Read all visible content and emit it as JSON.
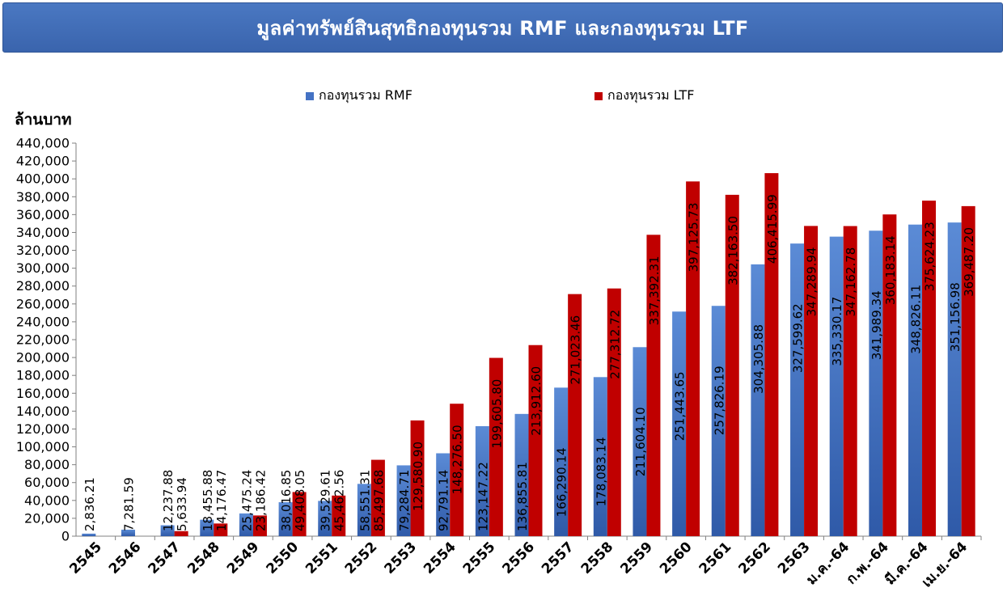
{
  "title": "มูลค่าทรัพย์สินสุทธิกองทุนรวม RMF  และกองทุนรวม LTF",
  "colors": {
    "banner": "#4472c4",
    "rmf": "#4472c4",
    "ltf": "#c00000"
  },
  "chart_data": {
    "type": "bar",
    "title": "มูลค่าทรัพย์สินสุทธิกองทุนรวม RMF  และกองทุนรวม LTF",
    "ylabel": "ล้านบาท",
    "xlabel": "",
    "ylim": [
      0,
      440000
    ],
    "ytick_step": 20000,
    "yticks": [
      "0",
      "20,000",
      "40,000",
      "60,000",
      "80,000",
      "100,000",
      "120,000",
      "140,000",
      "160,000",
      "180,000",
      "200,000",
      "220,000",
      "240,000",
      "260,000",
      "280,000",
      "300,000",
      "320,000",
      "340,000",
      "360,000",
      "380,000",
      "400,000",
      "420,000",
      "440,000"
    ],
    "legend_position": "top-center",
    "grid": false,
    "categories": [
      "2545",
      "2546",
      "2547",
      "2548",
      "2549",
      "2550",
      "2551",
      "2552",
      "2553",
      "2554",
      "2555",
      "2556",
      "2557",
      "2558",
      "2559",
      "2560",
      "2561",
      "2562",
      "2563",
      "ม.ค.-64",
      "ก.พ.-64",
      "มี.ค.-64",
      "เม.ย.-64"
    ],
    "series": [
      {
        "name": "กองทุนรวม RMF",
        "values": [
          2836.21,
          7281.59,
          12237.88,
          18455.88,
          25475.24,
          38016.85,
          39529.61,
          58551.31,
          79284.71,
          92791.14,
          123147.22,
          136855.81,
          166290.14,
          178083.14,
          211604.1,
          251443.65,
          257826.19,
          304305.88,
          327599.62,
          335330.17,
          341989.34,
          348826.11,
          351156.98
        ],
        "labels": [
          "2,836.21",
          "7,281.59",
          "12,237.88",
          "18,455.88",
          "25,475.24",
          "38,016.85",
          "39,529.61",
          "58,551.31",
          "79,284.71",
          "92,791.14",
          "123,147.22",
          "136,855.81",
          "166,290.14",
          "178,083.14",
          "211,604.10",
          "251,443.65",
          "257,826.19",
          "304,305.88",
          "327,599.62",
          "335,330.17",
          "341,989.34",
          "348,826.11",
          "351,156.98"
        ]
      },
      {
        "name": "กองทุนรวม LTF",
        "values": [
          null,
          null,
          5633.94,
          14176.47,
          23186.42,
          49408.05,
          45462.56,
          85497.68,
          129580.9,
          148276.5,
          199605.8,
          213912.6,
          271023.46,
          277312.72,
          337392.31,
          397125.73,
          382163.5,
          406415.99,
          347289.94,
          347162.78,
          360183.14,
          375624.23,
          369487.2
        ],
        "labels": [
          "",
          "",
          "5,633.94",
          "14,176.47",
          "23,186.42",
          "49,408.05",
          "45,462.56",
          "85,497.68",
          "129,580.90",
          "148,276.50",
          "199,605.80",
          "213,912.60",
          "271,023.46",
          "277,312.72",
          "337,392.31",
          "397,125.73",
          "382,163.50",
          "406,415.99",
          "347,289.94",
          "347,162.78",
          "360,183.14",
          "375,624.23",
          "369,487.20"
        ]
      }
    ]
  }
}
